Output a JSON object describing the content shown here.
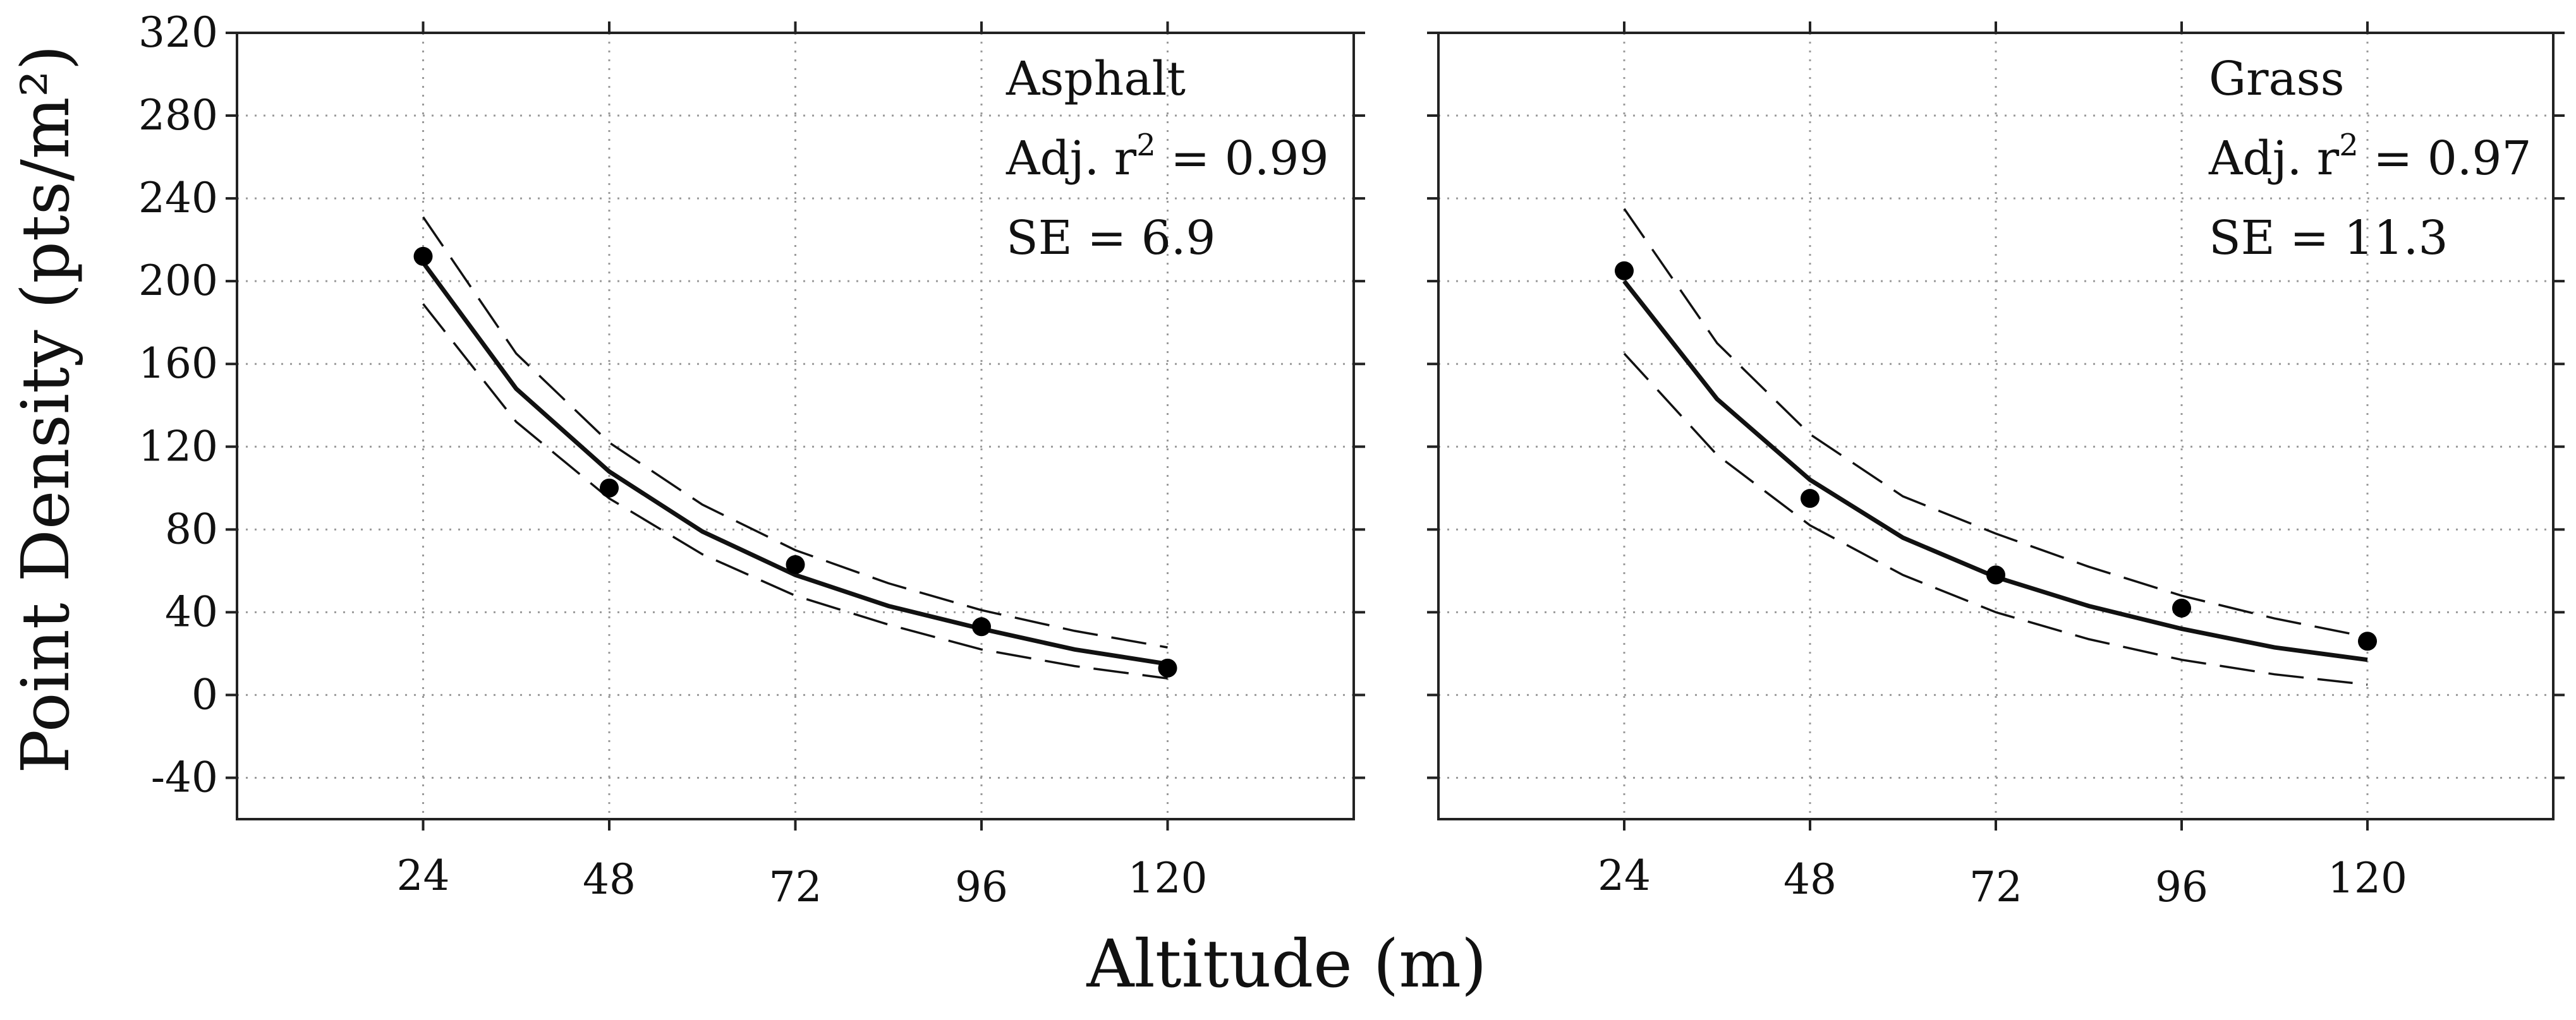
{
  "chart_data": [
    {
      "type": "scatter",
      "title": "",
      "xlabel": "Altitude (m)",
      "ylabel": "Point Density (pts/m²)",
      "xlim": [
        0,
        144
      ],
      "ylim": [
        -60,
        320
      ],
      "xticks": [
        24,
        48,
        72,
        96,
        120
      ],
      "yticks": [
        -40,
        0,
        40,
        80,
        120,
        160,
        200,
        240,
        280,
        320
      ],
      "grid": true,
      "annotations": [
        "Asphalt",
        "Adj. r² = 0.99",
        "SE = 6.9"
      ],
      "annotation_parts": {
        "surface": "Asphalt",
        "r2_prefix": "Adj. r",
        "r2_sup": "2",
        "r2_value": " = 0.99",
        "se": "SE = 6.9"
      },
      "points": {
        "x": [
          24,
          48,
          72,
          96,
          120
        ],
        "y": [
          212,
          100,
          63,
          33,
          13
        ]
      },
      "fit": {
        "x": [
          24,
          36,
          48,
          60,
          72,
          84,
          96,
          108,
          120
        ],
        "y": [
          209,
          148,
          108,
          79,
          58,
          43,
          32,
          22,
          15
        ]
      },
      "ci_upper": {
        "x": [
          24,
          36,
          48,
          60,
          72,
          84,
          96,
          108,
          120
        ],
        "y": [
          231,
          165,
          122,
          92,
          70,
          54,
          41,
          31,
          23
        ]
      },
      "ci_lower": {
        "x": [
          24,
          36,
          48,
          60,
          72,
          84,
          96,
          108,
          120
        ],
        "y": [
          189,
          132,
          95,
          68,
          48,
          34,
          22,
          14,
          8
        ]
      }
    },
    {
      "type": "scatter",
      "title": "",
      "xlabel": "Altitude (m)",
      "ylabel": "Point Density (pts/m²)",
      "xlim": [
        0,
        144
      ],
      "ylim": [
        -60,
        320
      ],
      "xticks": [
        24,
        48,
        72,
        96,
        120
      ],
      "yticks": [
        -40,
        0,
        40,
        80,
        120,
        160,
        200,
        240,
        280,
        320
      ],
      "grid": true,
      "annotations": [
        "Grass",
        "Adj. r² = 0.97",
        "SE = 11.3"
      ],
      "annotation_parts": {
        "surface": "Grass",
        "r2_prefix": "Adj. r",
        "r2_sup": "2",
        "r2_value": " = 0.97",
        "se": "SE = 11.3"
      },
      "points": {
        "x": [
          24,
          48,
          72,
          96,
          120
        ],
        "y": [
          205,
          95,
          58,
          42,
          26
        ]
      },
      "fit": {
        "x": [
          24,
          36,
          48,
          60,
          72,
          84,
          96,
          108,
          120
        ],
        "y": [
          200,
          143,
          104,
          76,
          57,
          43,
          32,
          23,
          17
        ]
      },
      "ci_upper": {
        "x": [
          24,
          36,
          48,
          60,
          72,
          84,
          96,
          108,
          120
        ],
        "y": [
          235,
          170,
          126,
          96,
          78,
          62,
          48,
          37,
          28
        ]
      },
      "ci_lower": {
        "x": [
          24,
          36,
          48,
          60,
          72,
          84,
          96,
          108,
          120
        ],
        "y": [
          165,
          116,
          82,
          58,
          40,
          27,
          17,
          10,
          5
        ]
      }
    }
  ],
  "shared_labels": {
    "xlabel": "Altitude (m)",
    "ylabel": "Point Density (pts/m²)"
  }
}
